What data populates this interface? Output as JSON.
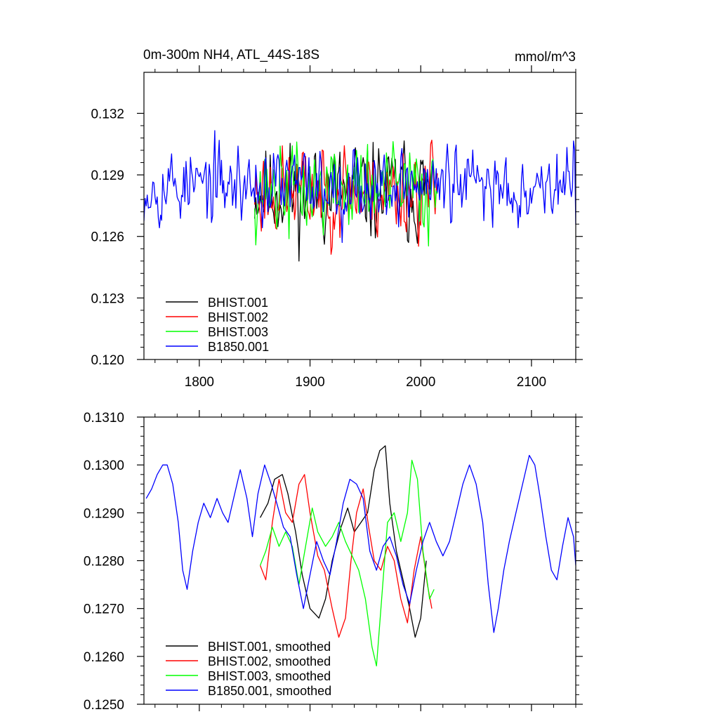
{
  "chart_data": [
    {
      "type": "line",
      "title_left": "0m-300m NH4, ATL_44S-18S",
      "title_right": "mmol/m^3",
      "xlim": [
        1750,
        2140
      ],
      "ylim": [
        0.12,
        0.134
      ],
      "xticks": [
        1800,
        1900,
        2000,
        2100
      ],
      "xtick_labels": [
        "1800",
        "1900",
        "2000",
        "2100"
      ],
      "yticks": [
        0.12,
        0.123,
        0.126,
        0.129,
        0.132
      ],
      "ytick_labels": [
        "0.120",
        "0.123",
        "0.126",
        "0.129",
        "0.132"
      ],
      "legend": [
        "BHIST.001",
        "BHIST.002",
        "BHIST.003",
        "B1850.001"
      ],
      "series": [
        {
          "name": "BHIST.001",
          "color": "#000000",
          "x_start": 1850,
          "x_end": 2010,
          "mean": 0.1282,
          "amp": 0.0024,
          "range": [
            0.1235,
            0.1338
          ],
          "seed": 11
        },
        {
          "name": "BHIST.002",
          "color": "#ff0000",
          "x_start": 1850,
          "x_end": 2015,
          "mean": 0.1282,
          "amp": 0.0023,
          "range": [
            0.1227,
            0.133
          ],
          "seed": 23
        },
        {
          "name": "BHIST.003",
          "color": "#00ff00",
          "x_start": 1850,
          "x_end": 2015,
          "mean": 0.1283,
          "amp": 0.0023,
          "range": [
            0.1222,
            0.1328
          ],
          "seed": 37
        },
        {
          "name": "B1850.001",
          "color": "#0000ff",
          "x_start": 1750,
          "x_end": 2140,
          "mean": 0.1285,
          "amp": 0.0019,
          "range": [
            0.1212,
            0.1336
          ],
          "seed": 53
        }
      ]
    },
    {
      "type": "line",
      "title_left": "",
      "title_right": "",
      "xlim": [
        1750,
        2140
      ],
      "ylim": [
        0.125,
        0.131
      ],
      "xticks": [
        1800,
        1900,
        2000,
        2100
      ],
      "xtick_labels": [],
      "yticks": [
        0.125,
        0.126,
        0.127,
        0.128,
        0.129,
        0.13,
        0.131
      ],
      "ytick_labels": [
        "0.1250",
        "0.1260",
        "0.1270",
        "0.1280",
        "0.1290",
        "0.1300",
        "0.1310"
      ],
      "legend": [
        "BHIST.001, smoothed",
        "BHIST.002, smoothed",
        "BHIST.003, smoothed",
        "B1850.001, smoothed"
      ],
      "series": [
        {
          "name": "BHIST.001, smoothed",
          "color": "#000000",
          "points": [
            [
              1855,
              0.1289
            ],
            [
              1862,
              0.1292
            ],
            [
              1868,
              0.1297
            ],
            [
              1875,
              0.1298
            ],
            [
              1880,
              0.1294
            ],
            [
              1887,
              0.1286
            ],
            [
              1893,
              0.1277
            ],
            [
              1900,
              0.127
            ],
            [
              1908,
              0.1268
            ],
            [
              1914,
              0.1272
            ],
            [
              1920,
              0.128
            ],
            [
              1928,
              0.1287
            ],
            [
              1934,
              0.1291
            ],
            [
              1940,
              0.1286
            ],
            [
              1946,
              0.1288
            ],
            [
              1952,
              0.129
            ],
            [
              1958,
              0.1299
            ],
            [
              1963,
              0.1303
            ],
            [
              1968,
              0.1304
            ],
            [
              1972,
              0.1292
            ],
            [
              1978,
              0.1282
            ],
            [
              1984,
              0.1276
            ],
            [
              1990,
              0.127
            ],
            [
              1995,
              0.1264
            ],
            [
              2000,
              0.1268
            ],
            [
              2005,
              0.128
            ]
          ]
        },
        {
          "name": "BHIST.002, smoothed",
          "color": "#ff0000",
          "points": [
            [
              1855,
              0.1279
            ],
            [
              1860,
              0.1276
            ],
            [
              1866,
              0.1288
            ],
            [
              1872,
              0.1297
            ],
            [
              1878,
              0.129
            ],
            [
              1884,
              0.1288
            ],
            [
              1890,
              0.1296
            ],
            [
              1895,
              0.1298
            ],
            [
              1900,
              0.129
            ],
            [
              1907,
              0.1281
            ],
            [
              1913,
              0.1278
            ],
            [
              1920,
              0.127
            ],
            [
              1926,
              0.1264
            ],
            [
              1932,
              0.1268
            ],
            [
              1937,
              0.128
            ],
            [
              1942,
              0.129
            ],
            [
              1948,
              0.1295
            ],
            [
              1953,
              0.1287
            ],
            [
              1958,
              0.128
            ],
            [
              1964,
              0.1278
            ],
            [
              1970,
              0.1283
            ],
            [
              1976,
              0.128
            ],
            [
              1982,
              0.1272
            ],
            [
              1988,
              0.1267
            ],
            [
              1994,
              0.1278
            ],
            [
              2000,
              0.1285
            ],
            [
              2006,
              0.1275
            ],
            [
              2010,
              0.127
            ]
          ]
        },
        {
          "name": "BHIST.003, smoothed",
          "color": "#00ff00",
          "points": [
            [
              1855,
              0.1279
            ],
            [
              1860,
              0.1282
            ],
            [
              1866,
              0.1287
            ],
            [
              1872,
              0.1283
            ],
            [
              1878,
              0.1286
            ],
            [
              1884,
              0.1283
            ],
            [
              1890,
              0.1275
            ],
            [
              1896,
              0.1283
            ],
            [
              1902,
              0.1291
            ],
            [
              1907,
              0.1286
            ],
            [
              1914,
              0.1283
            ],
            [
              1920,
              0.1285
            ],
            [
              1926,
              0.1288
            ],
            [
              1932,
              0.1284
            ],
            [
              1938,
              0.1281
            ],
            [
              1944,
              0.1278
            ],
            [
              1950,
              0.1272
            ],
            [
              1956,
              0.1262
            ],
            [
              1960,
              0.1258
            ],
            [
              1964,
              0.127
            ],
            [
              1970,
              0.1288
            ],
            [
              1976,
              0.129
            ],
            [
              1982,
              0.1284
            ],
            [
              1988,
              0.129
            ],
            [
              1992,
              0.1301
            ],
            [
              1997,
              0.1297
            ],
            [
              2002,
              0.1282
            ],
            [
              2008,
              0.1272
            ],
            [
              2012,
              0.1274
            ]
          ]
        },
        {
          "name": "B1850.001, smoothed",
          "color": "#0000ff",
          "points": [
            [
              1752,
              0.1293
            ],
            [
              1757,
              0.1295
            ],
            [
              1762,
              0.1298
            ],
            [
              1767,
              0.13
            ],
            [
              1771,
              0.13
            ],
            [
              1776,
              0.1296
            ],
            [
              1781,
              0.1288
            ],
            [
              1785,
              0.1278
            ],
            [
              1789,
              0.1274
            ],
            [
              1794,
              0.1282
            ],
            [
              1799,
              0.1288
            ],
            [
              1804,
              0.1292
            ],
            [
              1810,
              0.1289
            ],
            [
              1816,
              0.1293
            ],
            [
              1821,
              0.129
            ],
            [
              1826,
              0.1288
            ],
            [
              1831,
              0.1293
            ],
            [
              1837,
              0.1299
            ],
            [
              1843,
              0.1293
            ],
            [
              1848,
              0.1285
            ],
            [
              1853,
              0.1294
            ],
            [
              1859,
              0.13
            ],
            [
              1865,
              0.1296
            ],
            [
              1870,
              0.1292
            ],
            [
              1876,
              0.1287
            ],
            [
              1882,
              0.1285
            ],
            [
              1888,
              0.1277
            ],
            [
              1894,
              0.127
            ],
            [
              1900,
              0.1277
            ],
            [
              1906,
              0.1284
            ],
            [
              1912,
              0.128
            ],
            [
              1918,
              0.1277
            ],
            [
              1924,
              0.1284
            ],
            [
              1930,
              0.1292
            ],
            [
              1936,
              0.1297
            ],
            [
              1942,
              0.1296
            ],
            [
              1948,
              0.1293
            ],
            [
              1954,
              0.1282
            ],
            [
              1960,
              0.1278
            ],
            [
              1966,
              0.1283
            ],
            [
              1972,
              0.1285
            ],
            [
              1978,
              0.1281
            ],
            [
              1984,
              0.1275
            ],
            [
              1990,
              0.1271
            ],
            [
              1996,
              0.1278
            ],
            [
              2002,
              0.1284
            ],
            [
              2008,
              0.1288
            ],
            [
              2014,
              0.1284
            ],
            [
              2020,
              0.1281
            ],
            [
              2026,
              0.1284
            ],
            [
              2032,
              0.129
            ],
            [
              2038,
              0.1296
            ],
            [
              2044,
              0.13
            ],
            [
              2050,
              0.1296
            ],
            [
              2056,
              0.1288
            ],
            [
              2061,
              0.1275
            ],
            [
              2066,
              0.1265
            ],
            [
              2070,
              0.127
            ],
            [
              2075,
              0.1278
            ],
            [
              2080,
              0.1284
            ],
            [
              2086,
              0.129
            ],
            [
              2092,
              0.1296
            ],
            [
              2098,
              0.1302
            ],
            [
              2103,
              0.13
            ],
            [
              2108,
              0.1293
            ],
            [
              2113,
              0.1285
            ],
            [
              2118,
              0.1278
            ],
            [
              2123,
              0.1276
            ],
            [
              2128,
              0.1283
            ],
            [
              2133,
              0.1289
            ],
            [
              2138,
              0.1285
            ],
            [
              2140,
              0.1279
            ]
          ]
        }
      ]
    }
  ]
}
